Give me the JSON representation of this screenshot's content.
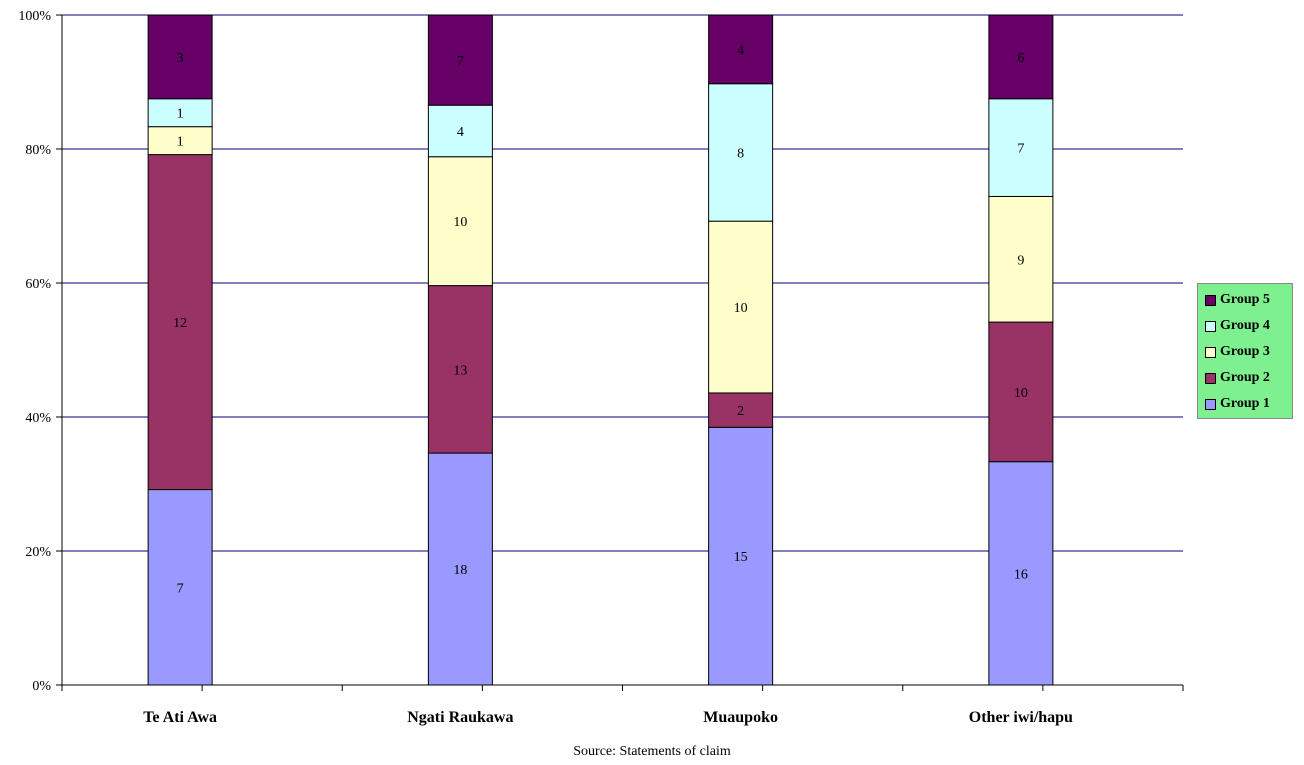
{
  "chart_data": {
    "type": "bar",
    "stacked": true,
    "percent": true,
    "categories": [
      "Te Ati Awa",
      "Ngati Raukawa",
      "Muaupoko",
      "Other iwi/hapu"
    ],
    "series": [
      {
        "name": "Group 1",
        "values": [
          7,
          18,
          15,
          16
        ],
        "color": "#9999ff"
      },
      {
        "name": "Group 2",
        "values": [
          12,
          13,
          2,
          10
        ],
        "color": "#993366"
      },
      {
        "name": "Group 3",
        "values": [
          1,
          10,
          10,
          9
        ],
        "color": "#ffffcc"
      },
      {
        "name": "Group 4",
        "values": [
          1,
          4,
          8,
          7
        ],
        "color": "#ccffff"
      },
      {
        "name": "Group 5",
        "values": [
          3,
          7,
          4,
          6
        ],
        "color": "#660066"
      }
    ],
    "yticks": [
      "0%",
      "20%",
      "40%",
      "60%",
      "80%",
      "100%"
    ],
    "ylim": [
      0,
      100
    ],
    "grid": true,
    "legend_position": "right",
    "legend_order": [
      "Group 5",
      "Group 4",
      "Group 3",
      "Group 2",
      "Group 1"
    ],
    "source": "Source: Statements of claim"
  },
  "colors": {
    "gridline": "#000080",
    "legend_background": "#7ff08f",
    "label_text": "#000000"
  }
}
